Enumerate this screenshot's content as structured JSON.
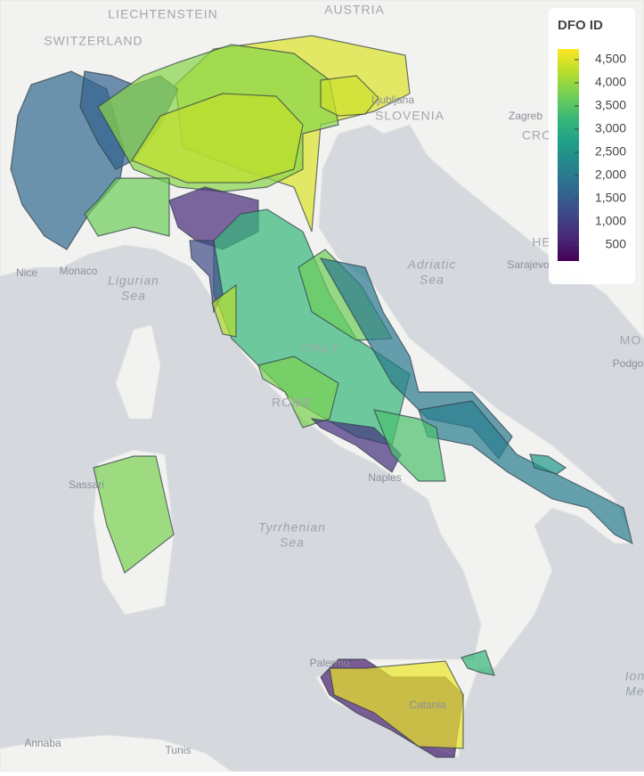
{
  "chart_data": {
    "type": "choropleth-map",
    "place_labels": [
      {
        "text": [
          "LIECHTENSTEIN"
        ]
      },
      {
        "text": [
          "AUSTRIA"
        ]
      },
      {
        "text": [
          "SWITZERLAND"
        ]
      },
      {
        "text": [
          "Ljubljana"
        ]
      },
      {
        "text": [
          "SLOVENIA"
        ]
      },
      {
        "text": [
          "Zagreb"
        ]
      },
      {
        "text": [
          "CRO"
        ]
      },
      {
        "text": [
          "Nice"
        ]
      },
      {
        "text": [
          "Monaco"
        ]
      },
      {
        "text": [
          "Ligurian",
          "Sea"
        ]
      },
      {
        "text": [
          "Adriatic",
          "Sea"
        ]
      },
      {
        "text": [
          "ITALY"
        ]
      },
      {
        "text": [
          "ROME"
        ]
      },
      {
        "text": [
          "Naples"
        ]
      },
      {
        "text": [
          "Sassari"
        ]
      },
      {
        "text": [
          "Tyrrhenian",
          "Sea"
        ]
      },
      {
        "text": [
          "Palermo"
        ]
      },
      {
        "text": [
          "Catania"
        ]
      },
      {
        "text": [
          "Annaba"
        ]
      },
      {
        "text": [
          "Tunis"
        ]
      },
      {
        "text": [
          "Sarajevo"
        ]
      },
      {
        "text": [
          "Podgo"
        ]
      },
      {
        "text": [
          "MO"
        ]
      },
      {
        "text": [
          "HE"
        ]
      },
      {
        "text": [
          "Ion",
          "Me"
        ]
      }
    ],
    "colorbar": {
      "title": "DFO ID",
      "clim": [
        150,
        4730
      ],
      "ticks": [
        500,
        {
          "value": 1000,
          "label": "1,000"
        },
        {
          "value": 1500,
          "label": "1,500"
        },
        {
          "value": 2000,
          "label": "2,000"
        },
        {
          "value": 2500,
          "label": "2,500"
        },
        {
          "value": 3000,
          "label": "3,000"
        },
        {
          "value": 3500,
          "label": "3,500"
        },
        {
          "value": 4000,
          "label": "4,000"
        },
        {
          "value": 4500,
          "label": "4,500"
        }
      ],
      "colorscale": "viridis"
    },
    "regions": {
      "values": [
        4500,
        1700,
        1600,
        3900,
        4300,
        4400,
        700,
        3700,
        3200,
        3700,
        2000,
        2100,
        2600,
        1200,
        3800,
        800,
        3400,
        3800,
        500,
        4600,
        3200,
        4200
      ]
    }
  }
}
